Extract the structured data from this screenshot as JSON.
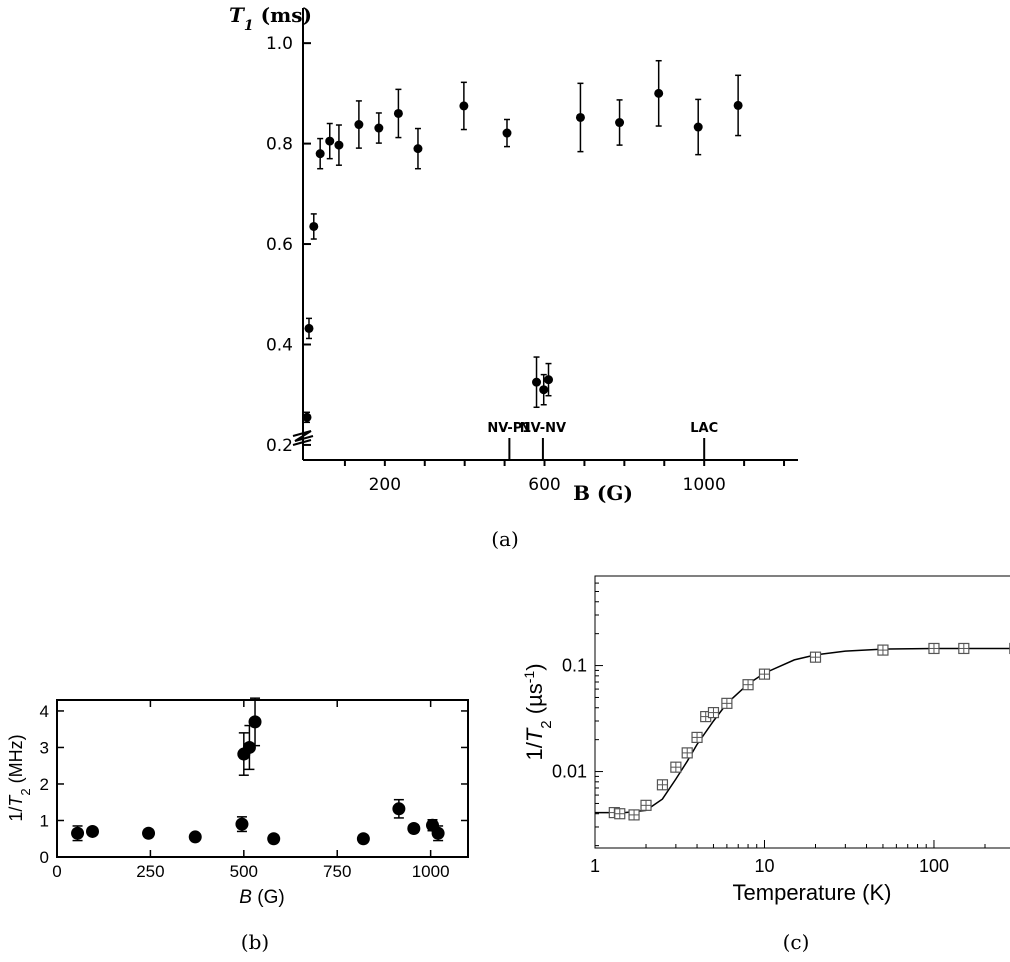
{
  "captions": [
    "(a)",
    "(b)",
    "(c)"
  ],
  "chart_data": [
    {
      "panel": "(a)",
      "type": "scatter",
      "title": "",
      "ylabel": "T₁ (ms)",
      "xlabel": "B (G)",
      "xlim": [
        -5,
        1240
      ],
      "ylim": [
        0.17,
        1.07
      ],
      "x_ticks": [
        200,
        600,
        1000
      ],
      "x_ticks_unlabeled": [
        100,
        300,
        400,
        500,
        700,
        800,
        900,
        1100,
        1200
      ],
      "y_ticks": [
        0.2,
        0.4,
        0.6,
        0.8,
        1.0
      ],
      "y_tick_labels": [
        "0.2",
        "0.4",
        "0.6",
        "0.8",
        "1.0"
      ],
      "grid": false,
      "axis_break": true,
      "annotations": [
        {
          "text": "NV-P1",
          "x": 512
        },
        {
          "text": "NV-NV",
          "x": 596
        },
        {
          "text": "LAC",
          "x": 1000
        }
      ],
      "series": [
        {
          "points": [
            {
              "x": 5,
              "y": 0.255,
              "err": 0.01
            },
            {
              "x": 10,
              "y": 0.432,
              "err": 0.02
            },
            {
              "x": 22,
              "y": 0.635,
              "err": 0.025
            },
            {
              "x": 38,
              "y": 0.78,
              "err": 0.03
            },
            {
              "x": 62,
              "y": 0.805,
              "err": 0.035
            },
            {
              "x": 85,
              "y": 0.797,
              "err": 0.04
            },
            {
              "x": 135,
              "y": 0.838,
              "err": 0.047
            },
            {
              "x": 185,
              "y": 0.831,
              "err": 0.03
            },
            {
              "x": 234,
              "y": 0.86,
              "err": 0.048
            },
            {
              "x": 283,
              "y": 0.79,
              "err": 0.04
            },
            {
              "x": 398,
              "y": 0.875,
              "err": 0.047
            },
            {
              "x": 506,
              "y": 0.821,
              "err": 0.027
            },
            {
              "x": 580,
              "y": 0.325,
              "err": 0.05
            },
            {
              "x": 598,
              "y": 0.31,
              "err": 0.03
            },
            {
              "x": 610,
              "y": 0.33,
              "err": 0.032
            },
            {
              "x": 690,
              "y": 0.852,
              "err": 0.068
            },
            {
              "x": 788,
              "y": 0.842,
              "err": 0.045
            },
            {
              "x": 886,
              "y": 0.9,
              "err": 0.065
            },
            {
              "x": 985,
              "y": 0.833,
              "err": 0.055
            },
            {
              "x": 1085,
              "y": 0.876,
              "err": 0.06
            }
          ]
        }
      ]
    },
    {
      "panel": "(b)",
      "type": "scatter",
      "title": "",
      "ylabel": "1/T₂ (MHz)",
      "xlabel": "B (G)",
      "xlim": [
        0,
        1100
      ],
      "ylim": [
        0,
        4.3
      ],
      "x_ticks": [
        0,
        250,
        500,
        750,
        1000
      ],
      "y_ticks": [
        0,
        1,
        2,
        3,
        4
      ],
      "grid": false,
      "series": [
        {
          "points": [
            {
              "x": 55,
              "y": 0.65,
              "err": 0.2
            },
            {
              "x": 95,
              "y": 0.7,
              "err": 0.1
            },
            {
              "x": 245,
              "y": 0.65,
              "err": 0.08
            },
            {
              "x": 370,
              "y": 0.55,
              "err": 0.06
            },
            {
              "x": 495,
              "y": 0.9,
              "err": 0.2
            },
            {
              "x": 500,
              "y": 2.82,
              "err": 0.58
            },
            {
              "x": 515,
              "y": 3.0,
              "err": 0.6
            },
            {
              "x": 530,
              "y": 3.7,
              "err": 0.65
            },
            {
              "x": 580,
              "y": 0.5,
              "err": 0.05
            },
            {
              "x": 820,
              "y": 0.5,
              "err": 0.05
            },
            {
              "x": 915,
              "y": 1.32,
              "err": 0.25
            },
            {
              "x": 955,
              "y": 0.78,
              "err": 0.1
            },
            {
              "x": 1005,
              "y": 0.87,
              "err": 0.15
            },
            {
              "x": 1020,
              "y": 0.65,
              "err": 0.2
            }
          ]
        }
      ]
    },
    {
      "panel": "(c)",
      "type": "scatter",
      "title": "",
      "ylabel": "1/T₂ (µs⁻¹)",
      "xlabel": "Temperature (K)",
      "xscale": "log",
      "yscale": "log",
      "xlim": [
        1,
        300
      ],
      "ylim": [
        0.0019,
        0.7
      ],
      "x_ticks": [
        1,
        10,
        100
      ],
      "x_tick_labels": [
        "1",
        "10",
        "100"
      ],
      "y_ticks": [
        0.01,
        0.1
      ],
      "y_tick_labels": [
        "0.01",
        "0.1"
      ],
      "grid": false,
      "series": [
        {
          "marker": "square-cross",
          "points": [
            {
              "x": 1.3,
              "y": 0.0041
            },
            {
              "x": 1.4,
              "y": 0.004
            },
            {
              "x": 1.7,
              "y": 0.0039
            },
            {
              "x": 2.0,
              "y": 0.0048
            },
            {
              "x": 2.5,
              "y": 0.0075
            },
            {
              "x": 3.0,
              "y": 0.011
            },
            {
              "x": 3.5,
              "y": 0.015
            },
            {
              "x": 4.0,
              "y": 0.021
            },
            {
              "x": 4.5,
              "y": 0.033
            },
            {
              "x": 5.0,
              "y": 0.036
            },
            {
              "x": 6.0,
              "y": 0.044
            },
            {
              "x": 8.0,
              "y": 0.066
            },
            {
              "x": 10.0,
              "y": 0.083
            },
            {
              "x": 20.0,
              "y": 0.12
            },
            {
              "x": 50.0,
              "y": 0.14
            },
            {
              "x": 100.0,
              "y": 0.145
            },
            {
              "x": 150.0,
              "y": 0.145
            },
            {
              "x": 300.0,
              "y": 0.145
            }
          ]
        },
        {
          "type": "line",
          "curve": "fit",
          "points": [
            {
              "x": 1.0,
              "y": 0.0041
            },
            {
              "x": 1.5,
              "y": 0.0041
            },
            {
              "x": 2.0,
              "y": 0.0043
            },
            {
              "x": 2.5,
              "y": 0.0055
            },
            {
              "x": 3.0,
              "y": 0.0085
            },
            {
              "x": 3.5,
              "y": 0.0125
            },
            {
              "x": 4.0,
              "y": 0.018
            },
            {
              "x": 5.0,
              "y": 0.03
            },
            {
              "x": 6.0,
              "y": 0.044
            },
            {
              "x": 8.0,
              "y": 0.067
            },
            {
              "x": 10.0,
              "y": 0.085
            },
            {
              "x": 15.0,
              "y": 0.113
            },
            {
              "x": 20.0,
              "y": 0.126
            },
            {
              "x": 30.0,
              "y": 0.137
            },
            {
              "x": 50.0,
              "y": 0.143
            },
            {
              "x": 100.0,
              "y": 0.145
            },
            {
              "x": 300.0,
              "y": 0.145
            }
          ]
        }
      ]
    }
  ]
}
